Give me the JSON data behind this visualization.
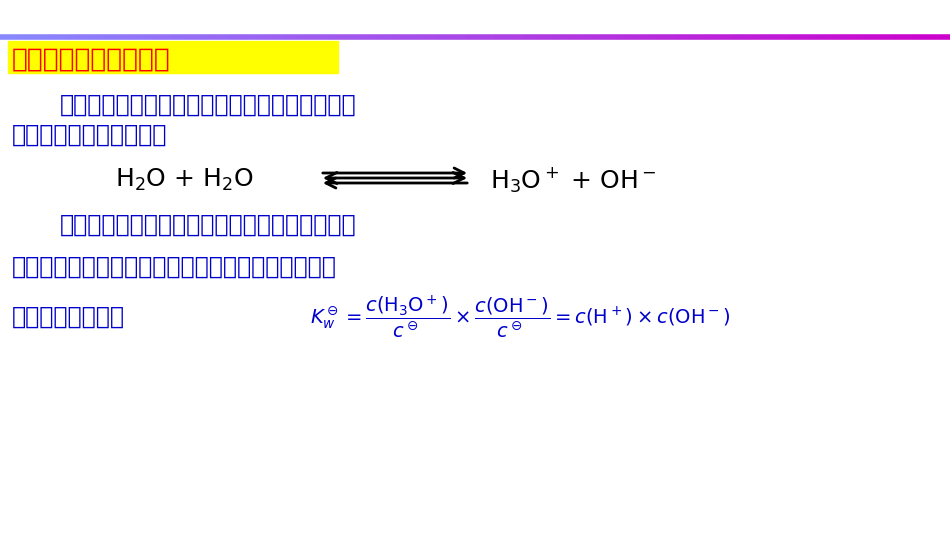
{
  "bg_color": "#ffffff",
  "top_line_color1": "#8080ff",
  "top_line_color2": "#cc00cc",
  "title_bg_color": "#ffff00",
  "title_text": "水的解离平衡和离子积",
  "title_text_color": "#ff0000",
  "body_color": "#0000cc",
  "line1": "水作为最重要的溶剂，既可以作为酸给出质子，",
  "line2": "又可以作为碱接受质子。",
  "line3_text": "该反应称为水的质子自递反应，该反应的标准平",
  "line4_text": "衡常数称为水的质子自递常数，也称为水的离子积常",
  "line5_text": "数，其表达式为："
}
